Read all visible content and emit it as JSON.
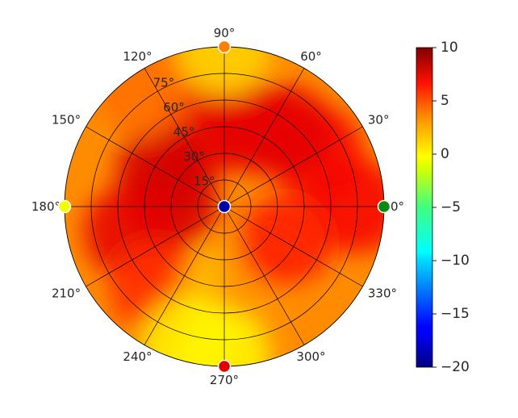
{
  "chart_data": {
    "type": "heatmap",
    "projection": "polar",
    "title": "",
    "angle_ticks": [
      {
        "deg": 0,
        "label": "0°"
      },
      {
        "deg": 30,
        "label": "30°"
      },
      {
        "deg": 60,
        "label": "60°"
      },
      {
        "deg": 90,
        "label": "90°"
      },
      {
        "deg": 120,
        "label": "120°"
      },
      {
        "deg": 150,
        "label": "150°"
      },
      {
        "deg": 180,
        "label": "180°"
      },
      {
        "deg": 210,
        "label": "210°"
      },
      {
        "deg": 240,
        "label": "240°"
      },
      {
        "deg": 270,
        "label": "270°"
      },
      {
        "deg": 300,
        "label": "300°"
      },
      {
        "deg": 330,
        "label": "330°"
      }
    ],
    "radial_ticks": [
      {
        "value": 15,
        "label": "15°"
      },
      {
        "value": 30,
        "label": "30°"
      },
      {
        "value": 45,
        "label": "45°"
      },
      {
        "value": 60,
        "label": "60°"
      },
      {
        "value": 75,
        "label": "75°"
      }
    ],
    "radial_range": [
      0,
      90
    ],
    "grid": true,
    "colorbar": {
      "range": [
        -20,
        10
      ],
      "ticks": [
        {
          "value": 10,
          "label": "10"
        },
        {
          "value": 5,
          "label": "5"
        },
        {
          "value": 0,
          "label": "0"
        },
        {
          "value": -5,
          "label": "−5"
        },
        {
          "value": -10,
          "label": "−10"
        },
        {
          "value": -15,
          "label": "−15"
        },
        {
          "value": -20,
          "label": "−20"
        }
      ],
      "colormap": "jet",
      "placement": "right"
    },
    "heat_blobs": [
      {
        "theta": 0,
        "r": 75,
        "value": 6.5
      },
      {
        "theta": 30,
        "r": 60,
        "value": 6.5
      },
      {
        "theta": 50,
        "r": 55,
        "value": 7
      },
      {
        "theta": 70,
        "r": 48,
        "value": 7
      },
      {
        "theta": 105,
        "r": 45,
        "value": 7
      },
      {
        "theta": 150,
        "r": 40,
        "value": 7.5
      },
      {
        "theta": 175,
        "r": 30,
        "value": 7.5
      },
      {
        "theta": 195,
        "r": 55,
        "value": 7
      },
      {
        "theta": 230,
        "r": 60,
        "value": 5
      },
      {
        "theta": 270,
        "r": 50,
        "value": 0.5
      },
      {
        "theta": 300,
        "r": 45,
        "value": 2
      },
      {
        "theta": 330,
        "r": 40,
        "value": 5.5
      },
      {
        "theta": 125,
        "r": 80,
        "value": 3
      },
      {
        "theta": 270,
        "r": 85,
        "value": -1
      },
      {
        "theta": 255,
        "r": 80,
        "value": -1
      },
      {
        "theta": 90,
        "r": 88,
        "value": 0
      }
    ],
    "markers": [
      {
        "theta": 0,
        "r": 90,
        "value": -7,
        "color": "#0b8a0b"
      },
      {
        "theta": 90,
        "r": 90,
        "value": 4,
        "color": "#ff8000"
      },
      {
        "theta": 180,
        "r": 90,
        "value": 1.5,
        "color": "#f2ff00"
      },
      {
        "theta": 270,
        "r": 90,
        "value": 9,
        "color": "#e00000"
      },
      {
        "theta": 0,
        "r": 0,
        "value": -19,
        "color": "#0000a8"
      }
    ]
  }
}
